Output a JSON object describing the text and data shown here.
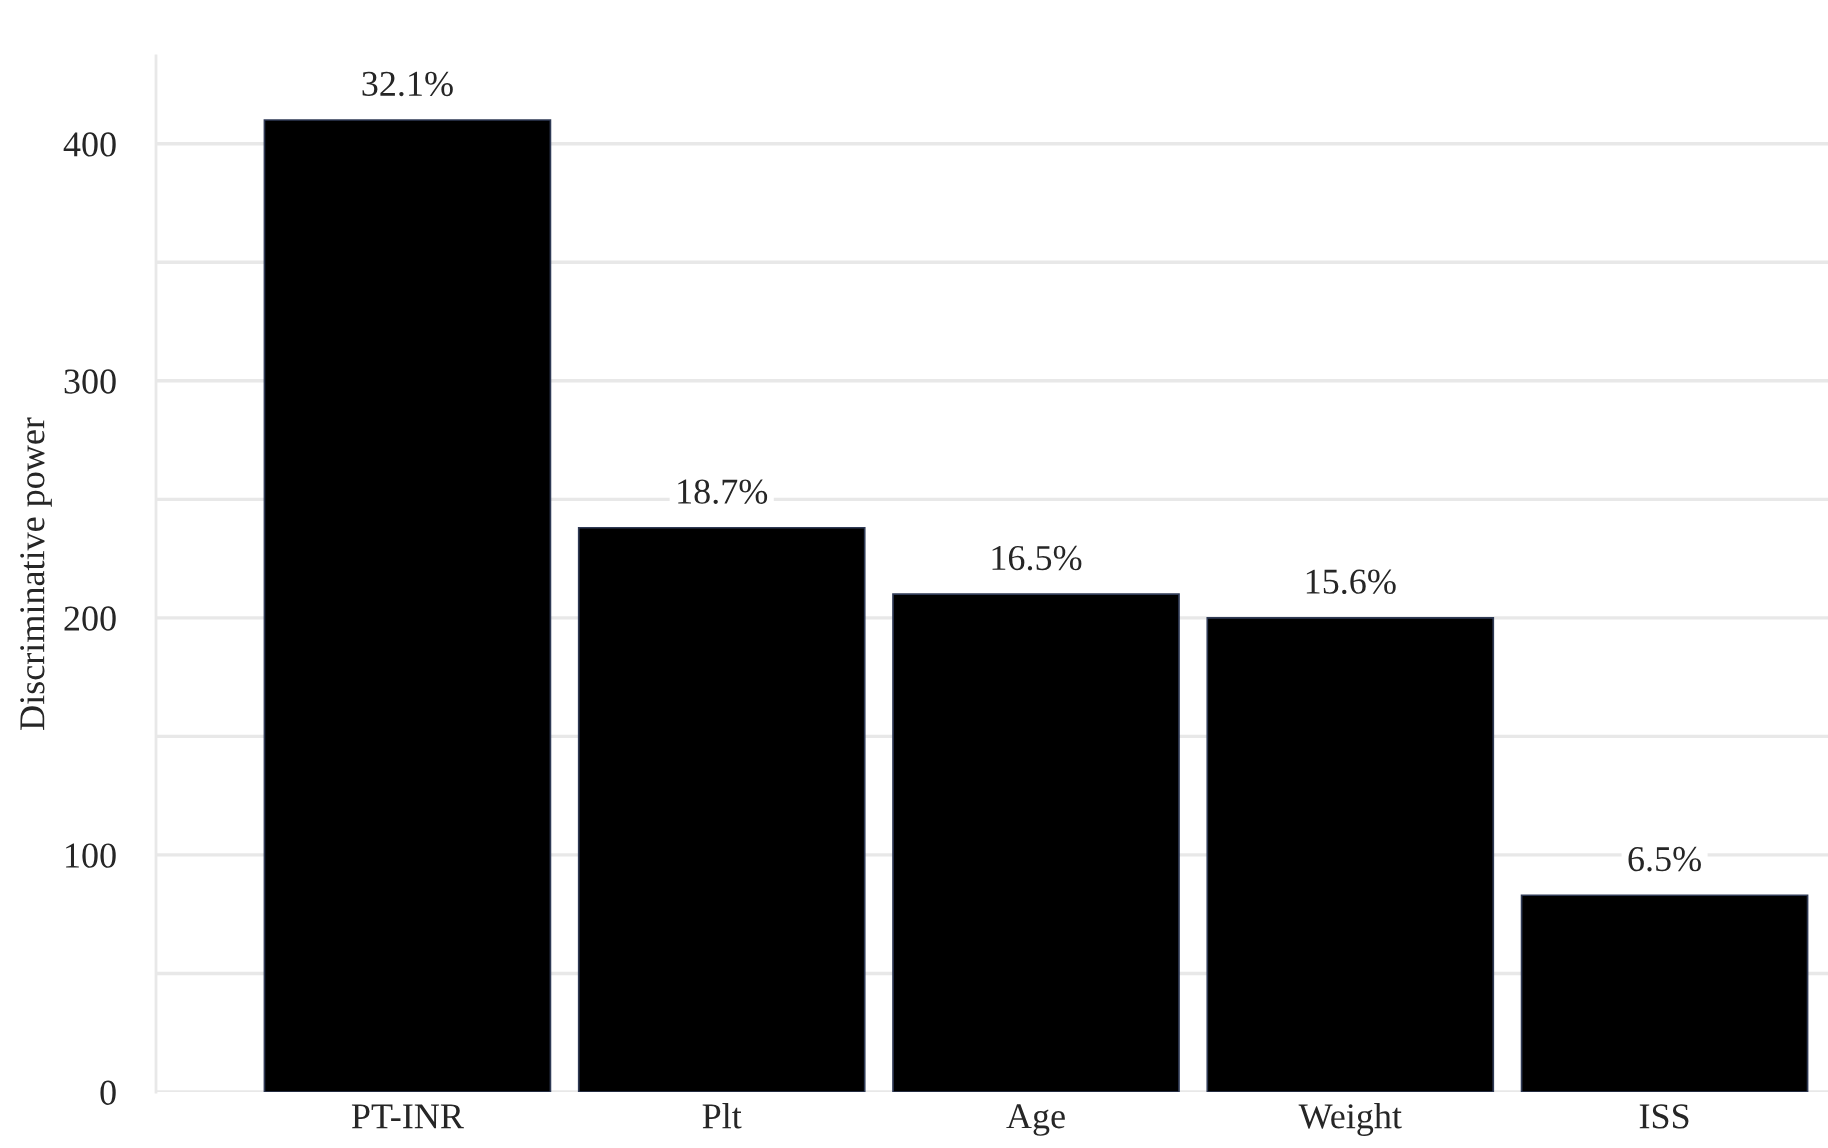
{
  "chart_data": {
    "type": "bar",
    "ylabel": "Discriminative power",
    "categories": [
      "PT-INR",
      "Plt",
      "Age",
      "Weight",
      "ISS"
    ],
    "values": [
      410,
      238,
      210,
      200,
      83
    ],
    "annotations": [
      {
        "text": "32.1%",
        "x": "PT-INR",
        "y": 410
      },
      {
        "text": "18.7%",
        "x": "Plt",
        "y": 238
      },
      {
        "text": "16.5%",
        "x": "Age",
        "y": 210
      },
      {
        "text": "15.6%",
        "x": "Weight",
        "y": 200
      },
      {
        "text": "6.5%",
        "x": "ISS",
        "y": 83
      }
    ],
    "color": "#000000",
    "ylim": [
      0,
      437
    ],
    "yticks": [
      0,
      {
        "value": 50,
        "label": null
      },
      100,
      {
        "value": 150,
        "label": null
      },
      200,
      {
        "value": 250,
        "label": null
      },
      300,
      {
        "value": 350,
        "label": null
      },
      400
    ],
    "grid": "y"
  }
}
